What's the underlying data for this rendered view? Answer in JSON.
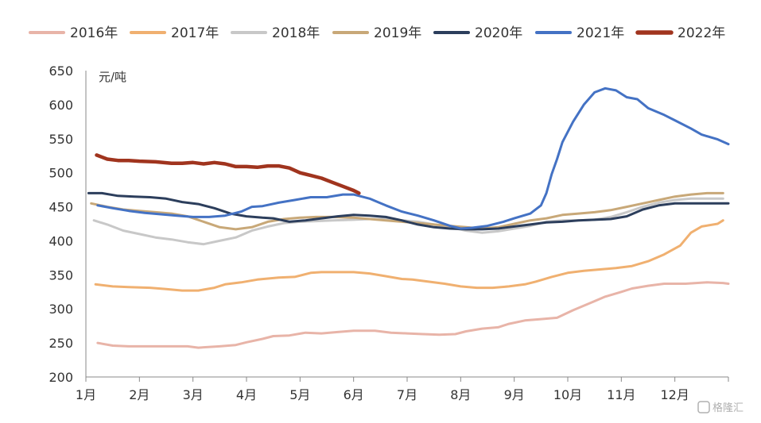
{
  "chart_data": {
    "type": "line",
    "title": "",
    "unit_label": "元/吨",
    "ylim": [
      200,
      650
    ],
    "yticks": [
      200,
      250,
      300,
      350,
      400,
      450,
      500,
      550,
      600,
      650
    ],
    "xlim": [
      1,
      13
    ],
    "xticks": [
      {
        "label": "1月",
        "x": 1
      },
      {
        "label": "2月",
        "x": 2
      },
      {
        "label": "3月",
        "x": 3
      },
      {
        "label": "4月",
        "x": 4
      },
      {
        "label": "5月",
        "x": 5
      },
      {
        "label": "6月",
        "x": 6
      },
      {
        "label": "7月",
        "x": 7
      },
      {
        "label": "8月",
        "x": 8
      },
      {
        "label": "9月",
        "x": 9
      },
      {
        "label": "10月",
        "x": 10
      },
      {
        "label": "11月",
        "x": 11
      },
      {
        "label": "12月",
        "x": 12
      }
    ],
    "grid": false,
    "legend_position": "top",
    "series": [
      {
        "name": "2016年",
        "color": "#E8B4A8",
        "width": 3,
        "points": [
          [
            1.22,
            250
          ],
          [
            1.5,
            246
          ],
          [
            1.8,
            245
          ],
          [
            2.2,
            245
          ],
          [
            2.6,
            245
          ],
          [
            2.9,
            245
          ],
          [
            3.1,
            243
          ],
          [
            3.5,
            245
          ],
          [
            3.8,
            247
          ],
          [
            4.0,
            251
          ],
          [
            4.3,
            256
          ],
          [
            4.5,
            260
          ],
          [
            4.8,
            261
          ],
          [
            5.1,
            265
          ],
          [
            5.4,
            264
          ],
          [
            5.7,
            266
          ],
          [
            6.0,
            268
          ],
          [
            6.4,
            268
          ],
          [
            6.7,
            265
          ],
          [
            7.0,
            264
          ],
          [
            7.3,
            263
          ],
          [
            7.6,
            262
          ],
          [
            7.9,
            263
          ],
          [
            8.1,
            267
          ],
          [
            8.4,
            271
          ],
          [
            8.7,
            273
          ],
          [
            8.9,
            278
          ],
          [
            9.2,
            283
          ],
          [
            9.5,
            285
          ],
          [
            9.8,
            287
          ],
          [
            10.1,
            298
          ],
          [
            10.4,
            308
          ],
          [
            10.7,
            318
          ],
          [
            11.0,
            325
          ],
          [
            11.2,
            330
          ],
          [
            11.5,
            334
          ],
          [
            11.8,
            337
          ],
          [
            12.2,
            337
          ],
          [
            12.6,
            339
          ],
          [
            12.9,
            338
          ],
          [
            13.0,
            337
          ]
        ]
      },
      {
        "name": "2017年",
        "color": "#F0B070",
        "width": 3,
        "points": [
          [
            1.18,
            336
          ],
          [
            1.5,
            333
          ],
          [
            1.8,
            332
          ],
          [
            2.2,
            331
          ],
          [
            2.5,
            329
          ],
          [
            2.8,
            327
          ],
          [
            3.1,
            327
          ],
          [
            3.4,
            331
          ],
          [
            3.6,
            336
          ],
          [
            3.9,
            339
          ],
          [
            4.2,
            343
          ],
          [
            4.6,
            346
          ],
          [
            4.9,
            347
          ],
          [
            5.2,
            353
          ],
          [
            5.4,
            354
          ],
          [
            5.7,
            354
          ],
          [
            6.0,
            354
          ],
          [
            6.3,
            352
          ],
          [
            6.6,
            348
          ],
          [
            6.9,
            344
          ],
          [
            7.1,
            343
          ],
          [
            7.4,
            340
          ],
          [
            7.7,
            337
          ],
          [
            8.0,
            333
          ],
          [
            8.3,
            331
          ],
          [
            8.6,
            331
          ],
          [
            8.9,
            333
          ],
          [
            9.2,
            336
          ],
          [
            9.4,
            340
          ],
          [
            9.7,
            347
          ],
          [
            10.0,
            353
          ],
          [
            10.3,
            356
          ],
          [
            10.6,
            358
          ],
          [
            10.9,
            360
          ],
          [
            11.2,
            363
          ],
          [
            11.5,
            370
          ],
          [
            11.8,
            380
          ],
          [
            12.1,
            393
          ],
          [
            12.3,
            412
          ],
          [
            12.5,
            421
          ],
          [
            12.8,
            425
          ],
          [
            12.9,
            430
          ]
        ]
      },
      {
        "name": "2018年",
        "color": "#C8C8C8",
        "width": 3,
        "points": [
          [
            1.15,
            430
          ],
          [
            1.4,
            424
          ],
          [
            1.7,
            415
          ],
          [
            2.0,
            410
          ],
          [
            2.3,
            405
          ],
          [
            2.6,
            402
          ],
          [
            2.9,
            398
          ],
          [
            3.2,
            395
          ],
          [
            3.5,
            400
          ],
          [
            3.8,
            405
          ],
          [
            4.1,
            415
          ],
          [
            4.4,
            421
          ],
          [
            4.7,
            426
          ],
          [
            5.0,
            428
          ],
          [
            5.3,
            429
          ],
          [
            5.6,
            430
          ],
          [
            6.0,
            431
          ],
          [
            6.3,
            432
          ],
          [
            6.6,
            432
          ],
          [
            6.9,
            430
          ],
          [
            7.2,
            428
          ],
          [
            7.5,
            424
          ],
          [
            7.8,
            420
          ],
          [
            8.1,
            415
          ],
          [
            8.4,
            412
          ],
          [
            8.7,
            414
          ],
          [
            9.0,
            418
          ],
          [
            9.3,
            422
          ],
          [
            9.6,
            428
          ],
          [
            9.9,
            430
          ],
          [
            10.2,
            430
          ],
          [
            10.5,
            431
          ],
          [
            10.8,
            435
          ],
          [
            11.1,
            442
          ],
          [
            11.4,
            450
          ],
          [
            11.7,
            456
          ],
          [
            12.0,
            460
          ],
          [
            12.3,
            462
          ],
          [
            12.6,
            462
          ],
          [
            12.9,
            462
          ]
        ]
      },
      {
        "name": "2019年",
        "color": "#C8A878",
        "width": 3,
        "points": [
          [
            1.1,
            455
          ],
          [
            1.4,
            450
          ],
          [
            1.7,
            446
          ],
          [
            2.0,
            444
          ],
          [
            2.3,
            442
          ],
          [
            2.6,
            440
          ],
          [
            2.9,
            436
          ],
          [
            3.2,
            428
          ],
          [
            3.5,
            420
          ],
          [
            3.8,
            417
          ],
          [
            4.1,
            420
          ],
          [
            4.4,
            428
          ],
          [
            4.7,
            432
          ],
          [
            5.0,
            434
          ],
          [
            5.3,
            435
          ],
          [
            5.6,
            435
          ],
          [
            6.0,
            434
          ],
          [
            6.3,
            432
          ],
          [
            6.6,
            430
          ],
          [
            6.9,
            428
          ],
          [
            7.2,
            426
          ],
          [
            7.5,
            424
          ],
          [
            7.8,
            422
          ],
          [
            8.1,
            420
          ],
          [
            8.4,
            418
          ],
          [
            8.7,
            420
          ],
          [
            9.0,
            425
          ],
          [
            9.3,
            430
          ],
          [
            9.6,
            433
          ],
          [
            9.9,
            438
          ],
          [
            10.2,
            440
          ],
          [
            10.5,
            442
          ],
          [
            10.8,
            445
          ],
          [
            11.1,
            450
          ],
          [
            11.4,
            455
          ],
          [
            11.7,
            460
          ],
          [
            12.0,
            465
          ],
          [
            12.3,
            468
          ],
          [
            12.6,
            470
          ],
          [
            12.9,
            470
          ]
        ]
      },
      {
        "name": "2020年",
        "color": "#2C3E5C",
        "width": 3,
        "points": [
          [
            1.05,
            470
          ],
          [
            1.3,
            470
          ],
          [
            1.6,
            466
          ],
          [
            1.9,
            465
          ],
          [
            2.2,
            464
          ],
          [
            2.5,
            462
          ],
          [
            2.8,
            457
          ],
          [
            3.1,
            454
          ],
          [
            3.4,
            448
          ],
          [
            3.7,
            440
          ],
          [
            4.0,
            436
          ],
          [
            4.3,
            434
          ],
          [
            4.5,
            433
          ],
          [
            4.8,
            428
          ],
          [
            5.1,
            430
          ],
          [
            5.4,
            433
          ],
          [
            5.7,
            436
          ],
          [
            6.0,
            438
          ],
          [
            6.3,
            437
          ],
          [
            6.6,
            435
          ],
          [
            6.9,
            430
          ],
          [
            7.2,
            424
          ],
          [
            7.5,
            420
          ],
          [
            7.8,
            418
          ],
          [
            8.1,
            417
          ],
          [
            8.4,
            417
          ],
          [
            8.7,
            418
          ],
          [
            9.0,
            421
          ],
          [
            9.3,
            424
          ],
          [
            9.6,
            427
          ],
          [
            9.9,
            428
          ],
          [
            10.2,
            430
          ],
          [
            10.5,
            431
          ],
          [
            10.8,
            432
          ],
          [
            11.1,
            436
          ],
          [
            11.4,
            446
          ],
          [
            11.7,
            452
          ],
          [
            12.0,
            455
          ],
          [
            12.3,
            455
          ],
          [
            12.6,
            455
          ],
          [
            12.9,
            455
          ],
          [
            13.0,
            455
          ]
        ]
      },
      {
        "name": "2021年",
        "color": "#4472C4",
        "width": 3,
        "points": [
          [
            1.22,
            452
          ],
          [
            1.5,
            448
          ],
          [
            1.8,
            444
          ],
          [
            2.1,
            441
          ],
          [
            2.4,
            439
          ],
          [
            2.7,
            437
          ],
          [
            3.0,
            435
          ],
          [
            3.3,
            435
          ],
          [
            3.6,
            437
          ],
          [
            3.9,
            443
          ],
          [
            4.1,
            450
          ],
          [
            4.3,
            451
          ],
          [
            4.6,
            456
          ],
          [
            4.9,
            460
          ],
          [
            5.2,
            464
          ],
          [
            5.5,
            464
          ],
          [
            5.8,
            468
          ],
          [
            6.0,
            468
          ],
          [
            6.3,
            462
          ],
          [
            6.6,
            452
          ],
          [
            6.9,
            443
          ],
          [
            7.2,
            437
          ],
          [
            7.5,
            430
          ],
          [
            7.8,
            422
          ],
          [
            8.0,
            418
          ],
          [
            8.2,
            419
          ],
          [
            8.5,
            422
          ],
          [
            8.8,
            428
          ],
          [
            9.0,
            433
          ],
          [
            9.3,
            440
          ],
          [
            9.5,
            452
          ],
          [
            9.6,
            470
          ],
          [
            9.7,
            498
          ],
          [
            9.8,
            520
          ],
          [
            9.9,
            545
          ],
          [
            10.1,
            575
          ],
          [
            10.3,
            600
          ],
          [
            10.5,
            618
          ],
          [
            10.7,
            624
          ],
          [
            10.9,
            621
          ],
          [
            11.1,
            611
          ],
          [
            11.3,
            608
          ],
          [
            11.5,
            595
          ],
          [
            11.8,
            585
          ],
          [
            12.0,
            577
          ],
          [
            12.3,
            565
          ],
          [
            12.5,
            556
          ],
          [
            12.8,
            549
          ],
          [
            13.0,
            542
          ]
        ]
      },
      {
        "name": "2022年",
        "color": "#A0341E",
        "width": 4.5,
        "points": [
          [
            1.2,
            526
          ],
          [
            1.4,
            520
          ],
          [
            1.6,
            518
          ],
          [
            1.8,
            518
          ],
          [
            2.0,
            517
          ],
          [
            2.3,
            516
          ],
          [
            2.6,
            514
          ],
          [
            2.8,
            514
          ],
          [
            3.0,
            515
          ],
          [
            3.2,
            513
          ],
          [
            3.4,
            515
          ],
          [
            3.6,
            513
          ],
          [
            3.8,
            509
          ],
          [
            4.0,
            509
          ],
          [
            4.2,
            508
          ],
          [
            4.4,
            510
          ],
          [
            4.6,
            510
          ],
          [
            4.8,
            507
          ],
          [
            5.0,
            500
          ],
          [
            5.2,
            496
          ],
          [
            5.4,
            492
          ],
          [
            5.6,
            486
          ],
          [
            5.8,
            480
          ],
          [
            6.0,
            474
          ],
          [
            6.1,
            470
          ]
        ]
      }
    ]
  },
  "watermark": "格隆汇"
}
